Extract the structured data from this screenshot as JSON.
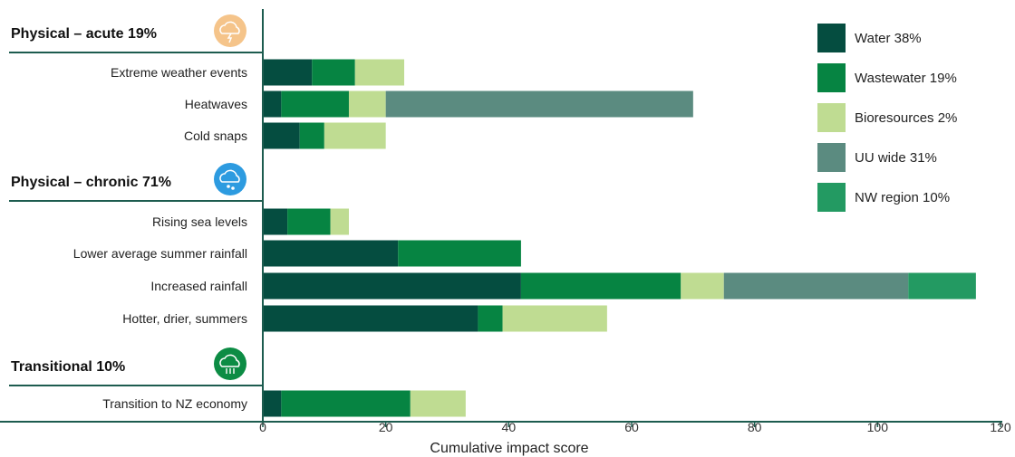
{
  "chart_data": {
    "type": "bar",
    "orientation": "horizontal",
    "stacked": true,
    "xlabel": "Cumulative impact score",
    "xlim": [
      0,
      120
    ],
    "xticks": [
      0,
      20,
      40,
      60,
      80,
      100,
      120
    ],
    "grid": false,
    "legend_position": "top-right",
    "series": [
      {
        "name": "Water 38%",
        "color": "#054d40"
      },
      {
        "name": "Wastewater 19%",
        "color": "#068442"
      },
      {
        "name": "Bioresources 2%",
        "color": "#bfdc92"
      },
      {
        "name": "UU wide 31%",
        "color": "#5b8b80"
      },
      {
        "name": "NW region 10%",
        "color": "#239a62"
      }
    ],
    "groups": [
      {
        "label": "Physical – acute 19%",
        "icon": "cloud-lightning-icon",
        "icon_color": "#f5c48a",
        "categories": [
          {
            "label": "Extreme weather events",
            "values": [
              8,
              7,
              8,
              0,
              0
            ]
          },
          {
            "label": "Heatwaves",
            "values": [
              3,
              11,
              6,
              50,
              0
            ]
          },
          {
            "label": "Cold snaps",
            "values": [
              6,
              4,
              10,
              0,
              0
            ]
          }
        ]
      },
      {
        "label": "Physical – chronic 71%",
        "icon": "cloud-rain-icon",
        "icon_color": "#2d9be0",
        "categories": [
          {
            "label": "Rising sea levels",
            "values": [
              4,
              7,
              3,
              0,
              0
            ]
          },
          {
            "label": "Lower average summer rainfall",
            "values": [
              22,
              20,
              0,
              0,
              0
            ]
          },
          {
            "label": "Increased rainfall",
            "values": [
              42,
              26,
              7,
              30,
              11
            ]
          },
          {
            "label": "Hotter, drier, summers",
            "values": [
              35,
              4,
              17,
              0,
              0
            ]
          }
        ]
      },
      {
        "label": "Transitional 10%",
        "icon": "cloud-co2-icon",
        "icon_color": "#0c8c44",
        "categories": [
          {
            "label": "Transition to NZ economy",
            "values": [
              3,
              21,
              9,
              0,
              0
            ]
          }
        ]
      }
    ]
  }
}
